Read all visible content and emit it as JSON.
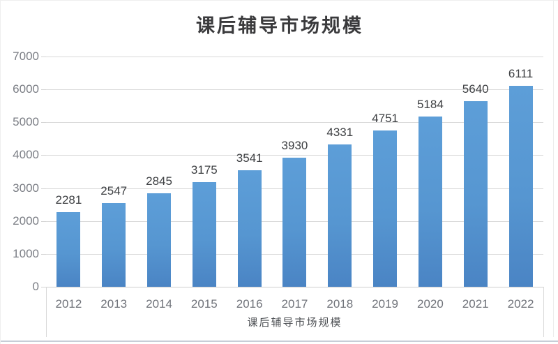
{
  "chart_data": {
    "type": "bar",
    "title": "课后辅导市场规模",
    "categories": [
      "2012",
      "2013",
      "2014",
      "2015",
      "2016",
      "2017",
      "2018",
      "2019",
      "2020",
      "2021",
      "2022"
    ],
    "values": [
      2281,
      2547,
      2845,
      3175,
      3541,
      3930,
      4331,
      4751,
      5184,
      5640,
      6111
    ],
    "xlabel": "课后辅导市场规模",
    "ylabel": "",
    "ylim": [
      0,
      7000
    ],
    "yticks": [
      0,
      1000,
      2000,
      3000,
      4000,
      5000,
      6000,
      7000
    ],
    "grid": true,
    "legend": "none",
    "data_labels": true,
    "colors": {
      "bar_top": "#5d9ed8",
      "bar_mid": "#5696d1",
      "bar_bottom": "#4a84c4",
      "gridline": "#d9d9d9",
      "title_text": "#3a3a3c",
      "axis_label_text": "#7b7e85",
      "data_label_text": "#3e4043",
      "frame_bottom": "#c7cdd7"
    }
  }
}
